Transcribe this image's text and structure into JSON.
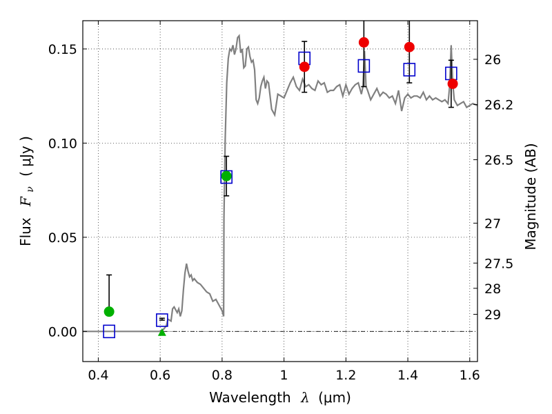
{
  "chart_data": {
    "type": "scatter",
    "xlabel": {
      "prefix": "Wavelength",
      "math": "λ",
      "unit": "(μm)"
    },
    "ylabel": {
      "prefix": "Flux",
      "math": "F",
      "sub": "ν",
      "unit": "( μJy )"
    },
    "ylabel_right": "Magnitude (AB)",
    "xlim": [
      0.35,
      1.625
    ],
    "ylim": [
      -0.016,
      0.165
    ],
    "grid": true,
    "x_ticks": [
      {
        "value": 0.4,
        "label": "0.4"
      },
      {
        "value": 0.6,
        "label": "0.6"
      },
      {
        "value": 0.8,
        "label": "0.8"
      },
      {
        "value": 1.0,
        "label": "1"
      },
      {
        "value": 1.2,
        "label": "1.2"
      },
      {
        "value": 1.4,
        "label": "1.4"
      },
      {
        "value": 1.6,
        "label": "1.6"
      }
    ],
    "y_ticks": [
      {
        "value": 0.0,
        "label": "0.00"
      },
      {
        "value": 0.05,
        "label": "0.05"
      },
      {
        "value": 0.1,
        "label": "0.10"
      },
      {
        "value": 0.15,
        "label": "0.15"
      }
    ],
    "mag_ticks": [
      {
        "value": 0.1445,
        "label": "26"
      },
      {
        "value": 0.1205,
        "label": "26.2"
      },
      {
        "value": 0.0912,
        "label": "26.5"
      },
      {
        "value": 0.0575,
        "label": "27"
      },
      {
        "value": 0.0363,
        "label": "27.5"
      },
      {
        "value": 0.0229,
        "label": "28"
      },
      {
        "value": 0.0091,
        "label": "29"
      }
    ],
    "model_spectrum": {
      "color": "#808080",
      "x": [
        0.35,
        0.6,
        0.61,
        0.62,
        0.625,
        0.635,
        0.64,
        0.645,
        0.655,
        0.66,
        0.665,
        0.67,
        0.675,
        0.68,
        0.685,
        0.69,
        0.695,
        0.7,
        0.705,
        0.71,
        0.72,
        0.73,
        0.74,
        0.75,
        0.76,
        0.77,
        0.78,
        0.79,
        0.8,
        0.805,
        0.806,
        0.81,
        0.815,
        0.82,
        0.825,
        0.83,
        0.835,
        0.84,
        0.845,
        0.85,
        0.855,
        0.86,
        0.865,
        0.87,
        0.875,
        0.88,
        0.885,
        0.89,
        0.895,
        0.9,
        0.905,
        0.91,
        0.915,
        0.92,
        0.925,
        0.93,
        0.935,
        0.94,
        0.945,
        0.95,
        0.96,
        0.97,
        0.98,
        0.99,
        1.0,
        1.01,
        1.02,
        1.03,
        1.04,
        1.05,
        1.06,
        1.07,
        1.08,
        1.09,
        1.1,
        1.11,
        1.12,
        1.13,
        1.14,
        1.15,
        1.16,
        1.17,
        1.18,
        1.19,
        1.2,
        1.21,
        1.22,
        1.23,
        1.24,
        1.25,
        1.255,
        1.26,
        1.265,
        1.27,
        1.28,
        1.29,
        1.3,
        1.31,
        1.32,
        1.33,
        1.34,
        1.35,
        1.36,
        1.37,
        1.38,
        1.39,
        1.4,
        1.41,
        1.42,
        1.43,
        1.44,
        1.45,
        1.46,
        1.47,
        1.48,
        1.49,
        1.5,
        1.51,
        1.52,
        1.53,
        1.535,
        1.54,
        1.545,
        1.55,
        1.56,
        1.57,
        1.58,
        1.59,
        1.6,
        1.61,
        1.625
      ],
      "y": [
        0.0,
        0.0,
        0.001,
        0.003,
        0.0065,
        0.0055,
        0.012,
        0.013,
        0.01,
        0.012,
        0.008,
        0.011,
        0.022,
        0.031,
        0.036,
        0.032,
        0.029,
        0.03,
        0.027,
        0.028,
        0.026,
        0.025,
        0.023,
        0.021,
        0.02,
        0.016,
        0.017,
        0.014,
        0.011,
        0.008,
        0.06,
        0.102,
        0.132,
        0.145,
        0.15,
        0.149,
        0.152,
        0.147,
        0.15,
        0.156,
        0.157,
        0.148,
        0.15,
        0.14,
        0.141,
        0.15,
        0.151,
        0.146,
        0.143,
        0.144,
        0.139,
        0.123,
        0.121,
        0.124,
        0.13,
        0.133,
        0.135,
        0.129,
        0.133,
        0.132,
        0.118,
        0.115,
        0.126,
        0.125,
        0.124,
        0.128,
        0.132,
        0.135,
        0.13,
        0.128,
        0.134,
        0.13,
        0.131,
        0.129,
        0.128,
        0.133,
        0.131,
        0.132,
        0.127,
        0.128,
        0.128,
        0.13,
        0.131,
        0.125,
        0.131,
        0.126,
        0.129,
        0.131,
        0.132,
        0.126,
        0.13,
        0.149,
        0.13,
        0.128,
        0.123,
        0.126,
        0.129,
        0.125,
        0.127,
        0.126,
        0.124,
        0.125,
        0.121,
        0.128,
        0.117,
        0.124,
        0.126,
        0.124,
        0.125,
        0.125,
        0.124,
        0.127,
        0.123,
        0.125,
        0.123,
        0.124,
        0.123,
        0.122,
        0.123,
        0.121,
        0.13,
        0.152,
        0.132,
        0.123,
        0.12,
        0.121,
        0.122,
        0.119,
        0.12,
        0.121,
        0.12
      ]
    },
    "series": [
      {
        "marker": "square-open",
        "color": "#0000cc",
        "points": [
          {
            "x": 0.435,
            "y": 0.0,
            "err_low": 0.009,
            "err_high": 0.03
          },
          {
            "x": 0.606,
            "y": 0.006,
            "err_low": 0.006,
            "err_high": 0.007
          },
          {
            "x": 0.814,
            "y": 0.082,
            "err_low": 0.072,
            "err_high": 0.093
          },
          {
            "x": 1.066,
            "y": 0.145,
            "err_low": 0.127,
            "err_high": 0.154
          },
          {
            "x": 1.258,
            "y": 0.141,
            "err_low": 0.13,
            "err_high": 0.168
          },
          {
            "x": 1.405,
            "y": 0.139,
            "err_low": 0.132,
            "err_high": 0.168
          },
          {
            "x": 1.54,
            "y": 0.137,
            "err_low": 0.119,
            "err_high": 0.144
          }
        ]
      },
      {
        "marker": "circle",
        "color": "#00b000",
        "points": [
          {
            "x": 0.435,
            "y": 0.0105
          },
          {
            "x": 0.814,
            "y": 0.0825
          }
        ]
      },
      {
        "marker": "triangle",
        "color": "#00b000",
        "points": [
          {
            "x": 0.606,
            "y": -0.0005
          }
        ]
      },
      {
        "marker": "circle",
        "color": "#ee0000",
        "points": [
          {
            "x": 1.066,
            "y": 0.1405
          },
          {
            "x": 1.258,
            "y": 0.1535
          },
          {
            "x": 1.405,
            "y": 0.151
          },
          {
            "x": 1.545,
            "y": 0.1315
          }
        ]
      }
    ],
    "zero_line": {
      "y": 0.0,
      "color": "#000000",
      "style": "dash-dot"
    }
  }
}
